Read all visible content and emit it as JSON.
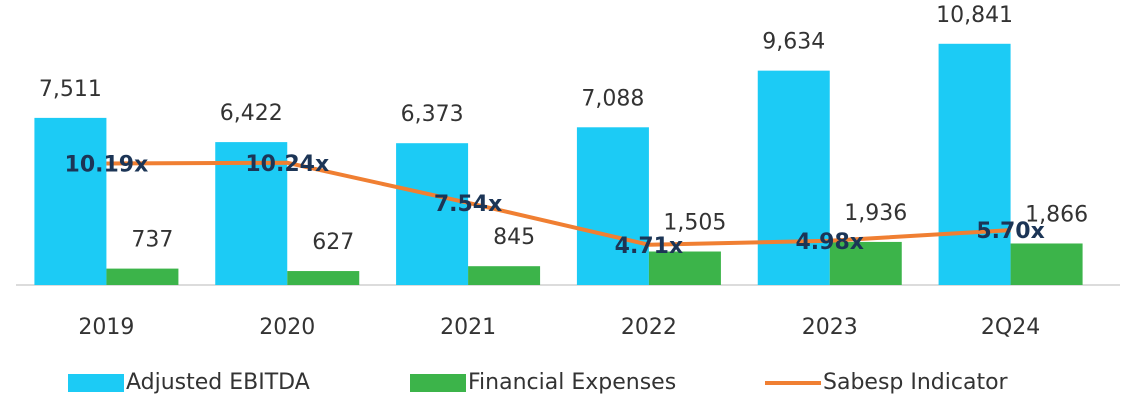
{
  "chart_data": {
    "type": "bar_line",
    "categories": [
      "2019",
      "2020",
      "2021",
      "2022",
      "2023",
      "2Q24"
    ],
    "series": [
      {
        "name": "Adjusted EBITDA",
        "color": "#1ccbf5",
        "type": "bar",
        "values": [
          7511,
          6422,
          6373,
          7088,
          9634,
          10841
        ],
        "value_labels": [
          "7,511",
          "6,422",
          "6,373",
          "7,088",
          "9,634",
          "10,841"
        ]
      },
      {
        "name": "Financial Expenses",
        "color": "#3cb44a",
        "type": "bar",
        "values": [
          737,
          627,
          845,
          1505,
          1936,
          1866
        ],
        "value_labels": [
          "737",
          "627",
          "845",
          "1,505",
          "1,936",
          "1,866"
        ]
      },
      {
        "name": "Sabesp Indicator",
        "color": "#f07f32",
        "type": "line",
        "axis": "y2",
        "values": [
          10.19,
          10.24,
          7.54,
          4.71,
          4.98,
          5.7
        ],
        "value_labels": [
          "10.19x",
          "10.24x",
          "7.54x",
          "4.71x",
          "4.98x",
          "5.70x"
        ]
      }
    ],
    "ylim": [
      0,
      12000
    ],
    "y2lim": [
      2,
      20
    ],
    "legend": "bottom"
  }
}
